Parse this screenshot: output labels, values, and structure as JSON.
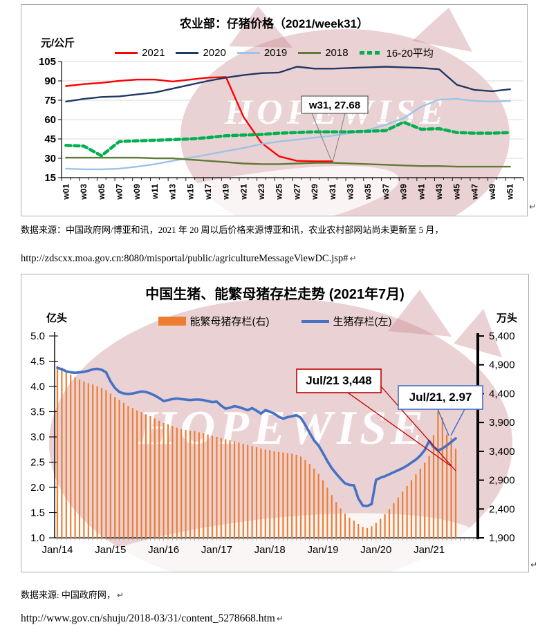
{
  "page": {
    "return_mark": "↵",
    "background": "#ffffff"
  },
  "watermark": {
    "text": "HOPEWISE",
    "color": "#c9858c"
  },
  "sources": {
    "top_line1": "数据来源：中国政府网/博亚和讯，2021 年 20 周以后价格来源博亚和讯，农业农村部网站尚未更新至 5 月，",
    "top_line2": "http://zdscxx.moa.gov.cn:8080/misportal/public/agricultureMessageViewDC.jsp#",
    "bottom_line1": "数据来源: 中国政府网，",
    "bottom_line2": "http://www.gov.cn/shuju/2018-03/31/content_5278668.htm"
  },
  "chart_data": [
    {
      "type": "line",
      "title": "农业部：仔猪价格（2021/week31）",
      "ylabel": "元/公斤",
      "ylim": [
        15,
        105
      ],
      "yticks": [
        105,
        90,
        75,
        60,
        45,
        30,
        15
      ],
      "grid": "horizontal",
      "legend_position": "top",
      "categories": [
        "w01",
        "w03",
        "w05",
        "w07",
        "w09",
        "w11",
        "w13",
        "w15",
        "w17",
        "w19",
        "w21",
        "w23",
        "w25",
        "w27",
        "w29",
        "w31",
        "w33",
        "w35",
        "w37",
        "w39",
        "w41",
        "w43",
        "w45",
        "w47",
        "w49",
        "w51"
      ],
      "series": [
        {
          "name": "2021",
          "color": "#ff0000",
          "dash": false,
          "values": [
            86,
            87.5,
            88.5,
            90,
            91,
            91,
            89.5,
            91,
            92.5,
            93,
            62,
            42,
            31.5,
            28,
            27.7,
            27.68
          ]
        },
        {
          "name": "2020",
          "color": "#1f3864",
          "dash": false,
          "values": [
            74,
            76,
            77.5,
            78,
            79.5,
            81,
            84,
            87,
            90,
            92.5,
            94.5,
            96,
            96.5,
            101,
            99.5,
            99.5,
            100,
            100.5,
            101,
            100.5,
            100,
            99,
            87,
            83,
            82,
            83.5
          ]
        },
        {
          "name": "2019",
          "color": "#9dc3e6",
          "dash": false,
          "values": [
            22,
            21.5,
            21.5,
            22,
            23.5,
            25.5,
            28,
            30.5,
            33,
            35.5,
            38,
            41,
            43,
            44.5,
            46,
            47.5,
            49.5,
            52,
            56,
            61,
            70,
            75.5,
            76,
            74.5,
            74,
            74.5
          ]
        },
        {
          "name": "2018",
          "color": "#5f7a35",
          "dash": false,
          "values": [
            30.5,
            30.5,
            30.5,
            30.5,
            30.5,
            30,
            30,
            29,
            28,
            27,
            26,
            25.5,
            25.5,
            26,
            26.5,
            26.5,
            26,
            25.5,
            25,
            24.5,
            24,
            24,
            23.5,
            23.5,
            23.5,
            23.5
          ]
        },
        {
          "name": "16-20平均",
          "color": "#00b050",
          "dash": true,
          "values": [
            40,
            39.5,
            32,
            43,
            43.5,
            44,
            44.5,
            45,
            46,
            47.5,
            48,
            48.5,
            49.5,
            50,
            50.5,
            50.5,
            50.5,
            51,
            51.5,
            58,
            52.5,
            53,
            50,
            49.5,
            49.5,
            50
          ]
        }
      ],
      "annotation": {
        "text": "w31, 27.68",
        "week": 31,
        "value": 27.68
      }
    },
    {
      "type": "bar+line",
      "title": "中国生猪、能繁母猪存栏走势 (2021年7月)",
      "x_start": "Jan/14",
      "x_end": "Jul/21",
      "points": 91,
      "x_tick_labels": [
        "Jan/14",
        "Jan/15",
        "Jan/16",
        "Jan/17",
        "Jan/18",
        "Jan/19",
        "Jan/20",
        "Jan/21"
      ],
      "left_axis": {
        "label": "亿头",
        "min": 1.0,
        "max": 5.0,
        "ticks": [
          5.0,
          4.5,
          4.0,
          3.5,
          3.0,
          2.5,
          2.0,
          1.5,
          1.0
        ]
      },
      "right_axis": {
        "label": "万头",
        "min": 1900,
        "max": 5400,
        "ticks": [
          5400,
          4900,
          4400,
          3900,
          3400,
          2900,
          2400,
          1900
        ]
      },
      "bar_series": {
        "name": "能繁母猪存栏(右)",
        "axis": "right",
        "color": "#ed7d31",
        "values": [
          4880,
          4850,
          4790,
          4730,
          4680,
          4640,
          4610,
          4580,
          4560,
          4530,
          4500,
          4460,
          4400,
          4340,
          4290,
          4240,
          4190,
          4150,
          4110,
          4080,
          4040,
          4010,
          3970,
          3930,
          3890,
          3870,
          3840,
          3810,
          3790,
          3770,
          3760,
          3750,
          3730,
          3710,
          3690,
          3670,
          3650,
          3630,
          3610,
          3590,
          3570,
          3550,
          3530,
          3510,
          3490,
          3470,
          3450,
          3430,
          3420,
          3400,
          3390,
          3380,
          3370,
          3360,
          3340,
          3310,
          3250,
          3180,
          3100,
          3010,
          2900,
          2770,
          2640,
          2520,
          2410,
          2320,
          2250,
          2200,
          2140,
          2090,
          2070,
          2100,
          2160,
          2230,
          2310,
          2400,
          2500,
          2600,
          2700,
          2800,
          2900,
          3000,
          3100,
          3200,
          3320,
          3680,
          4100,
          3980,
          3690,
          3630,
          3448
        ]
      },
      "line_series": {
        "name": "生猪存栏(左)",
        "axis": "left",
        "color": "#4472c4",
        "values": [
          4.37,
          4.34,
          4.3,
          4.28,
          4.27,
          4.28,
          4.29,
          4.31,
          4.34,
          4.35,
          4.33,
          4.28,
          4.1,
          3.97,
          3.89,
          3.86,
          3.85,
          3.86,
          3.88,
          3.9,
          3.89,
          3.86,
          3.82,
          3.77,
          3.71,
          3.73,
          3.75,
          3.76,
          3.75,
          3.74,
          3.73,
          3.74,
          3.74,
          3.73,
          3.71,
          3.69,
          3.7,
          3.62,
          3.56,
          3.58,
          3.61,
          3.59,
          3.56,
          3.53,
          3.57,
          3.52,
          3.46,
          3.53,
          3.5,
          3.46,
          3.4,
          3.36,
          3.39,
          3.41,
          3.43,
          3.38,
          3.24,
          3.08,
          2.93,
          2.83,
          2.68,
          2.52,
          2.38,
          2.27,
          2.17,
          2.08,
          2.05,
          2.04,
          1.78,
          1.64,
          1.63,
          1.67,
          2.15,
          2.19,
          2.22,
          2.26,
          2.3,
          2.34,
          2.38,
          2.43,
          2.49,
          2.55,
          2.63,
          2.74,
          2.92,
          2.8,
          2.73,
          2.77,
          2.83,
          2.9,
          2.97
        ]
      },
      "annotations": [
        {
          "text": "Jul/21  3,448",
          "color": "#c00000",
          "series": "能繁母猪存栏",
          "value": 3448
        },
        {
          "text": "Jul/21, 2.97",
          "color": "#4472c4",
          "series": "生猪存栏",
          "value": 2.97
        }
      ]
    }
  ]
}
